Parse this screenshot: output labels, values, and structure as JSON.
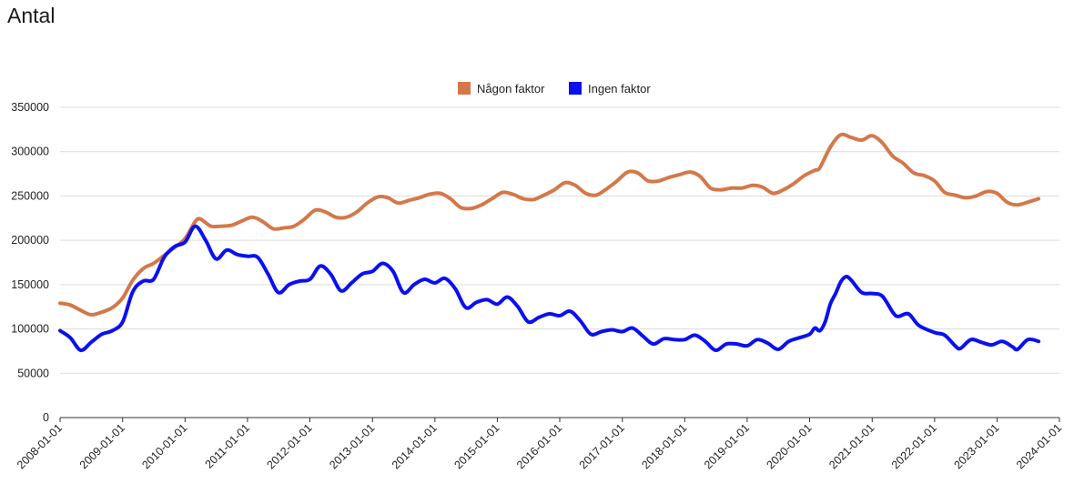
{
  "title": "Antal",
  "chart_data": {
    "type": "line",
    "title": "",
    "xlabel": "",
    "ylabel": "",
    "ylim": [
      0,
      350000
    ],
    "yticks": [
      0,
      50000,
      100000,
      150000,
      200000,
      250000,
      300000,
      350000
    ],
    "xlim": [
      "2008-01-01",
      "2024-01-01"
    ],
    "xticks": [
      "2008-01-01",
      "2009-01-01",
      "2010-01-01",
      "2011-01-01",
      "2012-01-01",
      "2013-01-01",
      "2014-01-01",
      "2015-01-01",
      "2016-01-01",
      "2017-01-01",
      "2018-01-01",
      "2019-01-01",
      "2020-01-01",
      "2021-01-01",
      "2022-01-01",
      "2023-01-01",
      "2024-01-01"
    ],
    "grid": true,
    "legend": "top-center",
    "series": [
      {
        "name": "Någon faktor",
        "color": "#d4784a",
        "points": [
          [
            "2008-01-01",
            129000
          ],
          [
            "2008-03-01",
            127000
          ],
          [
            "2008-05-01",
            121000
          ],
          [
            "2008-07-01",
            116000
          ],
          [
            "2008-09-01",
            119000
          ],
          [
            "2008-11-01",
            124000
          ],
          [
            "2009-01-01",
            135000
          ],
          [
            "2009-03-01",
            155000
          ],
          [
            "2009-05-01",
            168000
          ],
          [
            "2009-07-01",
            174000
          ],
          [
            "2009-09-01",
            183000
          ],
          [
            "2009-11-01",
            192000
          ],
          [
            "2010-01-01",
            202000
          ],
          [
            "2010-03-01",
            221000
          ],
          [
            "2010-04-01",
            224000
          ],
          [
            "2010-06-01",
            216000
          ],
          [
            "2010-08-01",
            216000
          ],
          [
            "2010-10-01",
            217000
          ],
          [
            "2010-12-01",
            222000
          ],
          [
            "2011-02-01",
            226000
          ],
          [
            "2011-04-01",
            221000
          ],
          [
            "2011-06-01",
            213000
          ],
          [
            "2011-08-01",
            214000
          ],
          [
            "2011-10-01",
            216000
          ],
          [
            "2011-12-01",
            224000
          ],
          [
            "2012-02-01",
            234000
          ],
          [
            "2012-04-01",
            232000
          ],
          [
            "2012-06-01",
            226000
          ],
          [
            "2012-08-01",
            226000
          ],
          [
            "2012-10-01",
            232000
          ],
          [
            "2012-12-01",
            242000
          ],
          [
            "2013-02-01",
            249000
          ],
          [
            "2013-04-01",
            248000
          ],
          [
            "2013-06-01",
            242000
          ],
          [
            "2013-08-01",
            245000
          ],
          [
            "2013-10-01",
            248000
          ],
          [
            "2013-12-01",
            252000
          ],
          [
            "2014-02-01",
            253000
          ],
          [
            "2014-04-01",
            247000
          ],
          [
            "2014-06-01",
            237000
          ],
          [
            "2014-08-01",
            236000
          ],
          [
            "2014-10-01",
            240000
          ],
          [
            "2014-12-01",
            247000
          ],
          [
            "2015-02-01",
            254000
          ],
          [
            "2015-04-01",
            252000
          ],
          [
            "2015-06-01",
            247000
          ],
          [
            "2015-08-01",
            246000
          ],
          [
            "2015-10-01",
            251000
          ],
          [
            "2015-12-01",
            257000
          ],
          [
            "2016-02-01",
            265000
          ],
          [
            "2016-04-01",
            262000
          ],
          [
            "2016-06-01",
            253000
          ],
          [
            "2016-08-01",
            251000
          ],
          [
            "2016-10-01",
            258000
          ],
          [
            "2016-12-01",
            267000
          ],
          [
            "2017-02-01",
            277000
          ],
          [
            "2017-04-01",
            276000
          ],
          [
            "2017-06-01",
            267000
          ],
          [
            "2017-08-01",
            267000
          ],
          [
            "2017-10-01",
            271000
          ],
          [
            "2017-12-01",
            274000
          ],
          [
            "2018-02-01",
            277000
          ],
          [
            "2018-04-01",
            272000
          ],
          [
            "2018-06-01",
            259000
          ],
          [
            "2018-08-01",
            257000
          ],
          [
            "2018-10-01",
            259000
          ],
          [
            "2018-12-01",
            259000
          ],
          [
            "2019-02-01",
            262000
          ],
          [
            "2019-04-01",
            260000
          ],
          [
            "2019-06-01",
            253000
          ],
          [
            "2019-08-01",
            257000
          ],
          [
            "2019-10-01",
            264000
          ],
          [
            "2019-12-01",
            273000
          ],
          [
            "2020-02-01",
            279000
          ],
          [
            "2020-03-01",
            282000
          ],
          [
            "2020-05-01",
            305000
          ],
          [
            "2020-07-01",
            319000
          ],
          [
            "2020-09-01",
            316000
          ],
          [
            "2020-11-01",
            313000
          ],
          [
            "2021-01-01",
            318000
          ],
          [
            "2021-03-01",
            310000
          ],
          [
            "2021-05-01",
            295000
          ],
          [
            "2021-07-01",
            287000
          ],
          [
            "2021-09-01",
            276000
          ],
          [
            "2021-11-01",
            273000
          ],
          [
            "2022-01-01",
            267000
          ],
          [
            "2022-03-01",
            254000
          ],
          [
            "2022-05-01",
            251000
          ],
          [
            "2022-07-01",
            248000
          ],
          [
            "2022-09-01",
            250000
          ],
          [
            "2022-11-01",
            255000
          ],
          [
            "2023-01-01",
            253000
          ],
          [
            "2023-03-01",
            243000
          ],
          [
            "2023-05-01",
            240000
          ],
          [
            "2023-07-01",
            243000
          ],
          [
            "2023-09-01",
            247000
          ]
        ]
      },
      {
        "name": "Ingen faktor",
        "color": "#0a10f0",
        "points": [
          [
            "2008-01-01",
            98000
          ],
          [
            "2008-03-01",
            90000
          ],
          [
            "2008-05-01",
            76000
          ],
          [
            "2008-07-01",
            85000
          ],
          [
            "2008-09-01",
            94000
          ],
          [
            "2008-11-01",
            98000
          ],
          [
            "2009-01-01",
            108000
          ],
          [
            "2009-03-01",
            142000
          ],
          [
            "2009-05-01",
            154000
          ],
          [
            "2009-07-01",
            156000
          ],
          [
            "2009-09-01",
            181000
          ],
          [
            "2009-11-01",
            193000
          ],
          [
            "2010-01-01",
            198000
          ],
          [
            "2010-03-01",
            216000
          ],
          [
            "2010-05-01",
            200000
          ],
          [
            "2010-07-01",
            179000
          ],
          [
            "2010-09-01",
            189000
          ],
          [
            "2010-11-01",
            184000
          ],
          [
            "2011-01-01",
            182000
          ],
          [
            "2011-03-01",
            181000
          ],
          [
            "2011-05-01",
            162000
          ],
          [
            "2011-07-01",
            141000
          ],
          [
            "2011-09-01",
            150000
          ],
          [
            "2011-11-01",
            154000
          ],
          [
            "2012-01-01",
            156000
          ],
          [
            "2012-03-01",
            171000
          ],
          [
            "2012-05-01",
            162000
          ],
          [
            "2012-07-01",
            143000
          ],
          [
            "2012-09-01",
            152000
          ],
          [
            "2012-11-01",
            162000
          ],
          [
            "2013-01-01",
            165000
          ],
          [
            "2013-03-01",
            174000
          ],
          [
            "2013-05-01",
            165000
          ],
          [
            "2013-07-01",
            141000
          ],
          [
            "2013-09-01",
            150000
          ],
          [
            "2013-11-01",
            156000
          ],
          [
            "2014-01-01",
            152000
          ],
          [
            "2014-03-01",
            157000
          ],
          [
            "2014-05-01",
            145000
          ],
          [
            "2014-07-01",
            124000
          ],
          [
            "2014-09-01",
            130000
          ],
          [
            "2014-11-01",
            133000
          ],
          [
            "2015-01-01",
            128000
          ],
          [
            "2015-03-01",
            136000
          ],
          [
            "2015-05-01",
            125000
          ],
          [
            "2015-07-01",
            108000
          ],
          [
            "2015-09-01",
            113000
          ],
          [
            "2015-11-01",
            117000
          ],
          [
            "2016-01-01",
            115000
          ],
          [
            "2016-03-01",
            120000
          ],
          [
            "2016-05-01",
            109000
          ],
          [
            "2016-07-01",
            94000
          ],
          [
            "2016-09-01",
            97000
          ],
          [
            "2016-11-01",
            99000
          ],
          [
            "2017-01-01",
            97000
          ],
          [
            "2017-03-01",
            101000
          ],
          [
            "2017-05-01",
            92000
          ],
          [
            "2017-07-01",
            83000
          ],
          [
            "2017-09-01",
            89000
          ],
          [
            "2017-11-01",
            88000
          ],
          [
            "2018-01-01",
            88000
          ],
          [
            "2018-03-01",
            93000
          ],
          [
            "2018-05-01",
            86000
          ],
          [
            "2018-07-01",
            76000
          ],
          [
            "2018-09-01",
            83000
          ],
          [
            "2018-11-01",
            83000
          ],
          [
            "2019-01-01",
            81000
          ],
          [
            "2019-03-01",
            88000
          ],
          [
            "2019-05-01",
            84000
          ],
          [
            "2019-07-01",
            77000
          ],
          [
            "2019-09-01",
            86000
          ],
          [
            "2019-11-01",
            90000
          ],
          [
            "2020-01-01",
            94000
          ],
          [
            "2020-02-01",
            101000
          ],
          [
            "2020-03-01",
            98000
          ],
          [
            "2020-04-01",
            108000
          ],
          [
            "2020-05-01",
            128000
          ],
          [
            "2020-06-01",
            140000
          ],
          [
            "2020-07-01",
            153000
          ],
          [
            "2020-08-01",
            159000
          ],
          [
            "2020-09-01",
            155000
          ],
          [
            "2020-11-01",
            141000
          ],
          [
            "2021-01-01",
            140000
          ],
          [
            "2021-03-01",
            137000
          ],
          [
            "2021-05-01",
            119000
          ],
          [
            "2021-06-01",
            114000
          ],
          [
            "2021-08-01",
            117000
          ],
          [
            "2021-10-01",
            104000
          ],
          [
            "2022-01-01",
            96000
          ],
          [
            "2022-03-01",
            93000
          ],
          [
            "2022-05-01",
            81000
          ],
          [
            "2022-06-01",
            78000
          ],
          [
            "2022-08-01",
            88000
          ],
          [
            "2022-10-01",
            85000
          ],
          [
            "2022-12-01",
            82000
          ],
          [
            "2023-02-01",
            86000
          ],
          [
            "2023-04-01",
            80000
          ],
          [
            "2023-05-01",
            77000
          ],
          [
            "2023-07-01",
            88000
          ],
          [
            "2023-09-01",
            86000
          ]
        ]
      }
    ]
  }
}
